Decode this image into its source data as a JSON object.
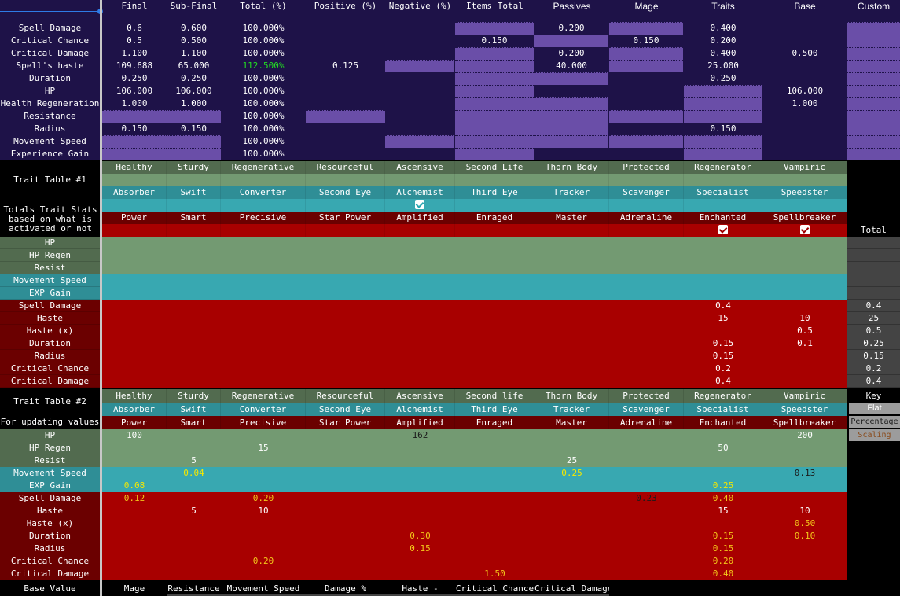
{
  "stats_table": {
    "columns": [
      "Final",
      "Sub-Final",
      "Total (%)",
      "Positive (%)",
      "Negative (%)",
      "Items Total",
      "Passives",
      "Mage",
      "Traits",
      "Base",
      "Custom"
    ],
    "rows": [
      {
        "label": "Spell Damage",
        "values": [
          "0.6",
          "0.600",
          "100.000%",
          "",
          "",
          "",
          "0.200",
          "",
          "0.400",
          "",
          ""
        ]
      },
      {
        "label": "Critical Chance",
        "values": [
          "0.5",
          "0.500",
          "100.000%",
          "",
          "",
          "0.150",
          "",
          "0.150",
          "0.200",
          "",
          ""
        ]
      },
      {
        "label": "Critical Damage",
        "values": [
          "1.100",
          "1.100",
          "100.000%",
          "",
          "",
          "",
          "0.200",
          "",
          "0.400",
          "0.500",
          ""
        ]
      },
      {
        "label": "Spell's haste",
        "values": [
          "109.688",
          "65.000",
          "112.500%",
          "0.125",
          "",
          "",
          "40.000",
          "",
          "25.000",
          "",
          ""
        ]
      },
      {
        "label": "Duration",
        "values": [
          "0.250",
          "0.250",
          "100.000%",
          "",
          "",
          "",
          "",
          "",
          "0.250",
          "",
          ""
        ]
      },
      {
        "label": "HP",
        "values": [
          "106.000",
          "106.000",
          "100.000%",
          "",
          "",
          "",
          "",
          "",
          "",
          "106.000",
          ""
        ]
      },
      {
        "label": "Health Regeneration",
        "values": [
          "1.000",
          "1.000",
          "100.000%",
          "",
          "",
          "",
          "",
          "",
          "",
          "1.000",
          ""
        ]
      },
      {
        "label": "Resistance",
        "values": [
          "",
          "",
          "100.000%",
          "",
          "",
          "",
          "",
          "",
          "",
          "",
          ""
        ]
      },
      {
        "label": "Radius",
        "values": [
          "0.150",
          "0.150",
          "100.000%",
          "",
          "",
          "",
          "",
          "",
          "0.150",
          "",
          ""
        ]
      },
      {
        "label": "Movement Speed",
        "values": [
          "",
          "",
          "100.000%",
          "",
          "",
          "",
          "",
          "",
          "",
          "",
          ""
        ]
      },
      {
        "label": "Experience Gain",
        "values": [
          "",
          "",
          "100.000%",
          "",
          "",
          "",
          "",
          "",
          "",
          "",
          ""
        ]
      }
    ],
    "highlight_color": "#22dd22"
  },
  "trait_table_1": {
    "title": "Trait Table #1",
    "subtitle": "Totals Trait Stats based on what is activated or not",
    "traits_row1": [
      "Healthy",
      "Sturdy",
      "Regenerative",
      "Resourceful",
      "Ascensive",
      "Second Life",
      "Thorn Body",
      "Protected",
      "Regenerator",
      "Vampiric"
    ],
    "traits_row2": [
      "Absorber",
      "Swift",
      "Converter",
      "Second Eye",
      "Alchemist",
      "Third Eye",
      "Tracker",
      "Scavenger",
      "Specialist",
      "Speedster"
    ],
    "traits_row3": [
      "Power",
      "Smart",
      "Precisive",
      "Star Power",
      "Amplified",
      "Enraged",
      "Master",
      "Adrenaline",
      "Enchanted",
      "Spellbreaker"
    ],
    "checked_row2": [
      false,
      false,
      false,
      false,
      true,
      false,
      false,
      false,
      false,
      false
    ],
    "checked_row3": [
      false,
      false,
      false,
      false,
      false,
      false,
      false,
      false,
      true,
      true
    ],
    "total_label": "Total",
    "stats": [
      {
        "label": "HP",
        "values": [
          "",
          "",
          "",
          "",
          "",
          "",
          "",
          "",
          "",
          ""
        ],
        "total": ""
      },
      {
        "label": "HP Regen",
        "values": [
          "",
          "",
          "",
          "",
          "",
          "",
          "",
          "",
          "",
          ""
        ],
        "total": ""
      },
      {
        "label": "Resist",
        "values": [
          "",
          "",
          "",
          "",
          "",
          "",
          "",
          "",
          "",
          ""
        ],
        "total": ""
      },
      {
        "label": "Movement Speed",
        "values": [
          "",
          "",
          "",
          "",
          "",
          "",
          "",
          "",
          "",
          ""
        ],
        "total": ""
      },
      {
        "label": "EXP Gain",
        "values": [
          "",
          "",
          "",
          "",
          "",
          "",
          "",
          "",
          "",
          ""
        ],
        "total": ""
      },
      {
        "label": "Spell Damage",
        "values": [
          "",
          "",
          "",
          "",
          "",
          "",
          "",
          "",
          "0.4",
          ""
        ],
        "total": "0.4"
      },
      {
        "label": "Haste",
        "values": [
          "",
          "",
          "",
          "",
          "",
          "",
          "",
          "",
          "15",
          "10"
        ],
        "total": "25"
      },
      {
        "label": "Haste (x)",
        "values": [
          "",
          "",
          "",
          "",
          "",
          "",
          "",
          "",
          "",
          "0.5"
        ],
        "total": "0.5"
      },
      {
        "label": "Duration",
        "values": [
          "",
          "",
          "",
          "",
          "",
          "",
          "",
          "",
          "0.15",
          "0.1"
        ],
        "total": "0.25"
      },
      {
        "label": "Radius",
        "values": [
          "",
          "",
          "",
          "",
          "",
          "",
          "",
          "",
          "0.15",
          ""
        ],
        "total": "0.15"
      },
      {
        "label": "Critical Chance",
        "values": [
          "",
          "",
          "",
          "",
          "",
          "",
          "",
          "",
          "0.2",
          ""
        ],
        "total": "0.2"
      },
      {
        "label": "Critical Damage",
        "values": [
          "",
          "",
          "",
          "",
          "",
          "",
          "",
          "",
          "0.4",
          ""
        ],
        "total": "0.4"
      }
    ]
  },
  "trait_table_2": {
    "title": "Trait Table #2",
    "subtitle": "For updating values",
    "traits_row1": [
      "Healthy",
      "Sturdy",
      "Regenerative",
      "Resourceful",
      "Ascensive",
      "Second life",
      "Thorn Body",
      "Protected",
      "Regenerator",
      "Vampiric"
    ],
    "traits_row2": [
      "Absorber",
      "Swift",
      "Converter",
      "Second Eye",
      "Alchemist",
      "Third Eye",
      "Tracker",
      "Scavenger",
      "Specialist",
      "Speedster"
    ],
    "traits_row3": [
      "Power",
      "Smart",
      "Precisive",
      "Star Power",
      "Amplified",
      "Enraged",
      "Master",
      "Adrenaline",
      "Enchanted",
      "Spellbreaker"
    ],
    "stats": [
      {
        "label": "HP",
        "values": [
          "100",
          "",
          "",
          "",
          "162",
          "",
          "",
          "",
          "",
          "200"
        ],
        "styles": [
          "f",
          "",
          "",
          "",
          "d",
          "",
          "",
          "",
          "",
          "f"
        ]
      },
      {
        "label": "HP Regen",
        "values": [
          "",
          "",
          "15",
          "",
          "",
          "",
          "",
          "",
          "50",
          ""
        ],
        "styles": [
          "",
          "",
          "f",
          "",
          "",
          "",
          "",
          "",
          "f",
          ""
        ]
      },
      {
        "label": "Resist",
        "values": [
          "",
          "5",
          "",
          "",
          "",
          "",
          "25",
          "",
          "",
          ""
        ],
        "styles": [
          "",
          "f",
          "",
          "",
          "",
          "",
          "f",
          "",
          "",
          ""
        ]
      },
      {
        "label": "Movement Speed",
        "values": [
          "",
          "0.04",
          "",
          "",
          "",
          "",
          "0.25",
          "",
          "",
          "0.13"
        ],
        "styles": [
          "",
          "y",
          "",
          "",
          "",
          "",
          "y",
          "",
          "",
          "d"
        ]
      },
      {
        "label": "EXP Gain",
        "values": [
          "0.08",
          "",
          "",
          "",
          "",
          "",
          "",
          "",
          "0.25",
          ""
        ],
        "styles": [
          "y",
          "",
          "",
          "",
          "",
          "",
          "",
          "",
          "y",
          ""
        ]
      },
      {
        "label": "Spell Damage",
        "values": [
          "0.12",
          "",
          "0.20",
          "",
          "",
          "",
          "",
          "0.23",
          "0.40",
          ""
        ],
        "styles": [
          "o",
          "",
          "o",
          "",
          "",
          "",
          "",
          "d",
          "o",
          ""
        ]
      },
      {
        "label": "Haste",
        "values": [
          "",
          "5",
          "10",
          "",
          "",
          "",
          "",
          "",
          "15",
          "10"
        ],
        "styles": [
          "",
          "f",
          "f",
          "",
          "",
          "",
          "",
          "",
          "f",
          "f"
        ]
      },
      {
        "label": "Haste (x)",
        "values": [
          "",
          "",
          "",
          "",
          "",
          "",
          "",
          "",
          "",
          "0.50"
        ],
        "styles": [
          "",
          "",
          "",
          "",
          "",
          "",
          "",
          "",
          "",
          "o"
        ]
      },
      {
        "label": "Duration",
        "values": [
          "",
          "",
          "",
          "",
          "0.30",
          "",
          "",
          "",
          "0.15",
          "0.10"
        ],
        "styles": [
          "",
          "",
          "",
          "",
          "o",
          "",
          "",
          "",
          "o",
          "o"
        ]
      },
      {
        "label": "Radius",
        "values": [
          "",
          "",
          "",
          "",
          "0.15",
          "",
          "",
          "",
          "0.15",
          ""
        ],
        "styles": [
          "",
          "",
          "",
          "",
          "o",
          "",
          "",
          "",
          "o",
          ""
        ]
      },
      {
        "label": "Critical Chance",
        "values": [
          "",
          "",
          "0.20",
          "",
          "",
          "",
          "",
          "",
          "0.20",
          ""
        ],
        "styles": [
          "",
          "",
          "o",
          "",
          "",
          "",
          "",
          "",
          "o",
          ""
        ]
      },
      {
        "label": "Critical Damage",
        "values": [
          "",
          "",
          "",
          "",
          "",
          "1.50",
          "",
          "",
          "0.40",
          ""
        ],
        "styles": [
          "",
          "",
          "",
          "",
          "",
          "o",
          "",
          "",
          "o",
          ""
        ]
      }
    ],
    "key": {
      "title": "Key",
      "flat": "Flat",
      "percentage": "Percentage",
      "scaling": "Scaling"
    }
  },
  "base_value_row": {
    "label": "Base Value",
    "values": [
      "Mage",
      "Resistance",
      "Movement Speed",
      "Damage %",
      "Haste -",
      "Critical Chance",
      "Critical Damage"
    ]
  },
  "colors": {
    "top_bg": "#1e1248",
    "purple_cell": "#6a4ea8",
    "green_dark": "#526b4f",
    "green": "#739a72",
    "teal_dark": "#2f8e96",
    "teal": "#38a8b1",
    "red_dark": "#6b0000",
    "red": "#a80000",
    "flat_text": "#ffffff",
    "percentage_text": "#1a1a1a",
    "scaling_text": "#f3c51a"
  }
}
